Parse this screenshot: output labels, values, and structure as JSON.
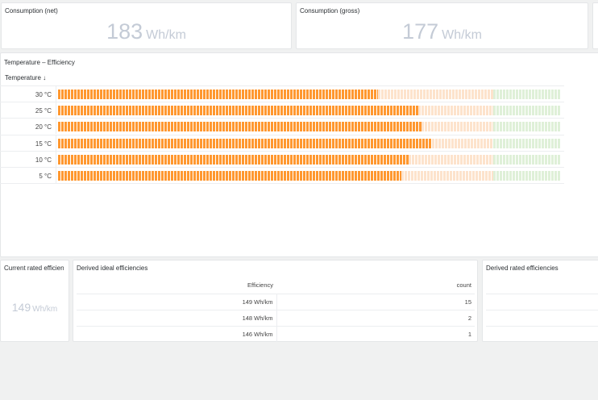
{
  "top_panels": [
    {
      "title": "Consumption (net)",
      "value": "183",
      "unit": "Wh/km"
    },
    {
      "title": "Consumption (gross)",
      "value": "177",
      "unit": "Wh/km"
    }
  ],
  "temp_panel": {
    "title": "Temperature – Efficiency",
    "column_header": "Temperature",
    "sort_icon": "arrow-down-icon",
    "colors": {
      "fill": "#ff9830",
      "unfilled": "#fde3cc",
      "threshold": "#dff0d8"
    },
    "threshold_fraction": 0.867,
    "rows": [
      {
        "label": "30 °C",
        "fill_fraction": 0.637
      },
      {
        "label": "25 °C",
        "fill_fraction": 0.718
      },
      {
        "label": "20 °C",
        "fill_fraction": 0.724
      },
      {
        "label": "15 °C",
        "fill_fraction": 0.745
      },
      {
        "label": "10 °C",
        "fill_fraction": 0.698
      },
      {
        "label": "5 °C",
        "fill_fraction": 0.684
      }
    ]
  },
  "current_rated": {
    "title": "Current rated efficiency",
    "value": "149",
    "unit": "Wh/km"
  },
  "derived_ideal": {
    "title": "Derived ideal efficiencies",
    "columns": [
      "Efficiency",
      "count"
    ],
    "rows": [
      [
        "149 Wh/km",
        "15"
      ],
      [
        "148 Wh/km",
        "2"
      ],
      [
        "146 Wh/km",
        "1"
      ]
    ]
  },
  "derived_rated": {
    "title": "Derived rated efficiencies"
  }
}
